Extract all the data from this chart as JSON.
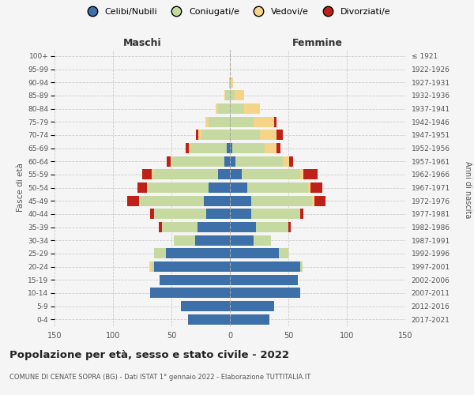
{
  "age_groups": [
    "0-4",
    "5-9",
    "10-14",
    "15-19",
    "20-24",
    "25-29",
    "30-34",
    "35-39",
    "40-44",
    "45-49",
    "50-54",
    "55-59",
    "60-64",
    "65-69",
    "70-74",
    "75-79",
    "80-84",
    "85-89",
    "90-94",
    "95-99",
    "100+"
  ],
  "birth_years": [
    "2017-2021",
    "2012-2016",
    "2007-2011",
    "2002-2006",
    "1997-2001",
    "1992-1996",
    "1987-1991",
    "1982-1986",
    "1977-1981",
    "1972-1976",
    "1967-1971",
    "1962-1966",
    "1957-1961",
    "1952-1956",
    "1947-1951",
    "1942-1946",
    "1937-1941",
    "1932-1936",
    "1927-1931",
    "1922-1926",
    "≤ 1921"
  ],
  "males": {
    "celibi": [
      36,
      42,
      68,
      60,
      65,
      55,
      30,
      28,
      20,
      22,
      18,
      10,
      5,
      3,
      0,
      0,
      0,
      0,
      0,
      0,
      0
    ],
    "coniugati": [
      0,
      0,
      0,
      0,
      2,
      10,
      18,
      30,
      45,
      55,
      52,
      55,
      45,
      30,
      24,
      18,
      10,
      4,
      1,
      0,
      0
    ],
    "vedovi": [
      0,
      0,
      0,
      0,
      2,
      0,
      0,
      0,
      0,
      1,
      1,
      2,
      1,
      2,
      3,
      3,
      2,
      1,
      0,
      0,
      0
    ],
    "divorziati": [
      0,
      0,
      0,
      0,
      0,
      0,
      0,
      3,
      3,
      10,
      8,
      8,
      3,
      3,
      2,
      0,
      0,
      0,
      0,
      0,
      0
    ]
  },
  "females": {
    "nubili": [
      34,
      38,
      60,
      58,
      60,
      42,
      20,
      22,
      18,
      18,
      15,
      10,
      5,
      2,
      0,
      0,
      0,
      0,
      0,
      0,
      0
    ],
    "coniugate": [
      0,
      0,
      0,
      0,
      2,
      8,
      15,
      28,
      42,
      52,
      52,
      50,
      40,
      28,
      26,
      20,
      12,
      4,
      1,
      0,
      0
    ],
    "vedove": [
      0,
      0,
      0,
      0,
      0,
      0,
      0,
      0,
      0,
      2,
      2,
      3,
      6,
      10,
      14,
      18,
      14,
      8,
      2,
      1,
      0
    ],
    "divorziate": [
      0,
      0,
      0,
      0,
      0,
      0,
      0,
      2,
      3,
      10,
      10,
      12,
      3,
      3,
      5,
      2,
      0,
      0,
      0,
      0,
      0
    ]
  },
  "colors": {
    "celibi": "#3d6fa8",
    "coniugati": "#c5d9a0",
    "vedovi": "#f5d48a",
    "divorziati": "#c0201a"
  },
  "xlim": 150,
  "title": "Popolazione per età, sesso e stato civile - 2022",
  "subtitle": "COMUNE DI CENATE SOPRA (BG) - Dati ISTAT 1° gennaio 2022 - Elaborazione TUTTITALIA.IT",
  "legend_labels": [
    "Celibi/Nubili",
    "Coniugati/e",
    "Vedovi/e",
    "Divorziati/e"
  ],
  "xlabel_left": "Maschi",
  "xlabel_right": "Femmine",
  "ylabel_left": "Fasce di età",
  "ylabel_right": "Anni di nascita",
  "background_color": "#f5f5f5"
}
